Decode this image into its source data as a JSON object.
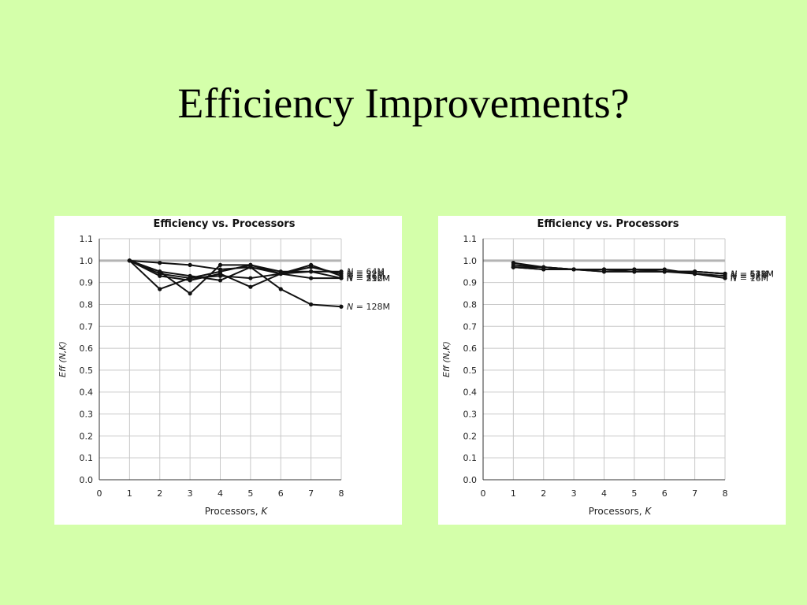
{
  "slide": {
    "title": "Efficiency Improvements?"
  },
  "chart_data": [
    {
      "type": "line",
      "title": "Efficiency vs. Processors",
      "xlabel": "Processors, K",
      "xlabel_text": "Processors, ",
      "xlabel_var": "K",
      "ylabel": "Eff (N,K)",
      "xlim": [
        0,
        8
      ],
      "ylim": [
        0.0,
        1.1
      ],
      "xticks": [
        "0",
        "1",
        "2",
        "3",
        "4",
        "5",
        "6",
        "7",
        "8"
      ],
      "yticks": [
        "0.0",
        "0.1",
        "0.2",
        "0.3",
        "0.4",
        "0.5",
        "0.6",
        "0.7",
        "0.8",
        "0.9",
        "1.0",
        "1.1"
      ],
      "reference_line": 1.0,
      "grid": true,
      "legend": "end-of-line labels",
      "x": [
        1,
        2,
        3,
        4,
        5,
        6,
        7,
        8
      ],
      "series": [
        {
          "name": "N = 64M",
          "values": [
            1.0,
            0.94,
            0.92,
            0.95,
            0.98,
            0.95,
            0.95,
            0.95
          ]
        },
        {
          "name": "N = 32M",
          "values": [
            1.0,
            0.95,
            0.93,
            0.91,
            0.97,
            0.94,
            0.97,
            0.94
          ]
        },
        {
          "name": "N = 16M",
          "values": [
            1.0,
            0.93,
            0.91,
            0.94,
            0.88,
            0.94,
            0.98,
            0.93
          ]
        },
        {
          "name": "N = 512M",
          "values": [
            1.0,
            0.87,
            0.92,
            0.93,
            0.92,
            0.94,
            0.92,
            0.92
          ]
        },
        {
          "name": "N = 256M",
          "values": [
            1.0,
            0.95,
            0.85,
            0.98,
            0.98,
            0.94,
            0.95,
            0.92
          ]
        },
        {
          "name": "N = 128M",
          "values": [
            1.0,
            0.99,
            0.98,
            0.96,
            0.97,
            0.87,
            0.8,
            0.79
          ]
        }
      ]
    },
    {
      "type": "line",
      "title": "Efficiency vs. Processors",
      "xlabel": "Processors, K",
      "xlabel_text": "Processors, ",
      "xlabel_var": "K",
      "ylabel": "Eff (N,K)",
      "xlim": [
        0,
        8
      ],
      "ylim": [
        0.0,
        1.1
      ],
      "xticks": [
        "0",
        "1",
        "2",
        "3",
        "4",
        "5",
        "6",
        "7",
        "8"
      ],
      "yticks": [
        "0.0",
        "0.1",
        "0.2",
        "0.3",
        "0.4",
        "0.5",
        "0.6",
        "0.7",
        "0.8",
        "0.9",
        "1.0",
        "1.1"
      ],
      "reference_line": 1.0,
      "grid": true,
      "legend": "end-of-line labels",
      "x": [
        1,
        2,
        3,
        4,
        5,
        6,
        7,
        8
      ],
      "series": [
        {
          "name": "N = 512M",
          "values": [
            0.99,
            0.97,
            0.96,
            0.96,
            0.96,
            0.95,
            0.95,
            0.94
          ]
        },
        {
          "name": "N = 128M",
          "values": [
            0.98,
            0.97,
            0.96,
            0.96,
            0.95,
            0.95,
            0.95,
            0.94
          ]
        },
        {
          "name": "N = 64M",
          "values": [
            0.97,
            0.96,
            0.96,
            0.95,
            0.95,
            0.95,
            0.95,
            0.94
          ]
        },
        {
          "name": "N = 32M",
          "values": [
            0.97,
            0.97,
            0.96,
            0.96,
            0.96,
            0.96,
            0.94,
            0.93
          ]
        },
        {
          "name": "N = 16M",
          "values": [
            0.97,
            0.96,
            0.96,
            0.95,
            0.95,
            0.95,
            0.94,
            0.92
          ]
        }
      ]
    }
  ]
}
